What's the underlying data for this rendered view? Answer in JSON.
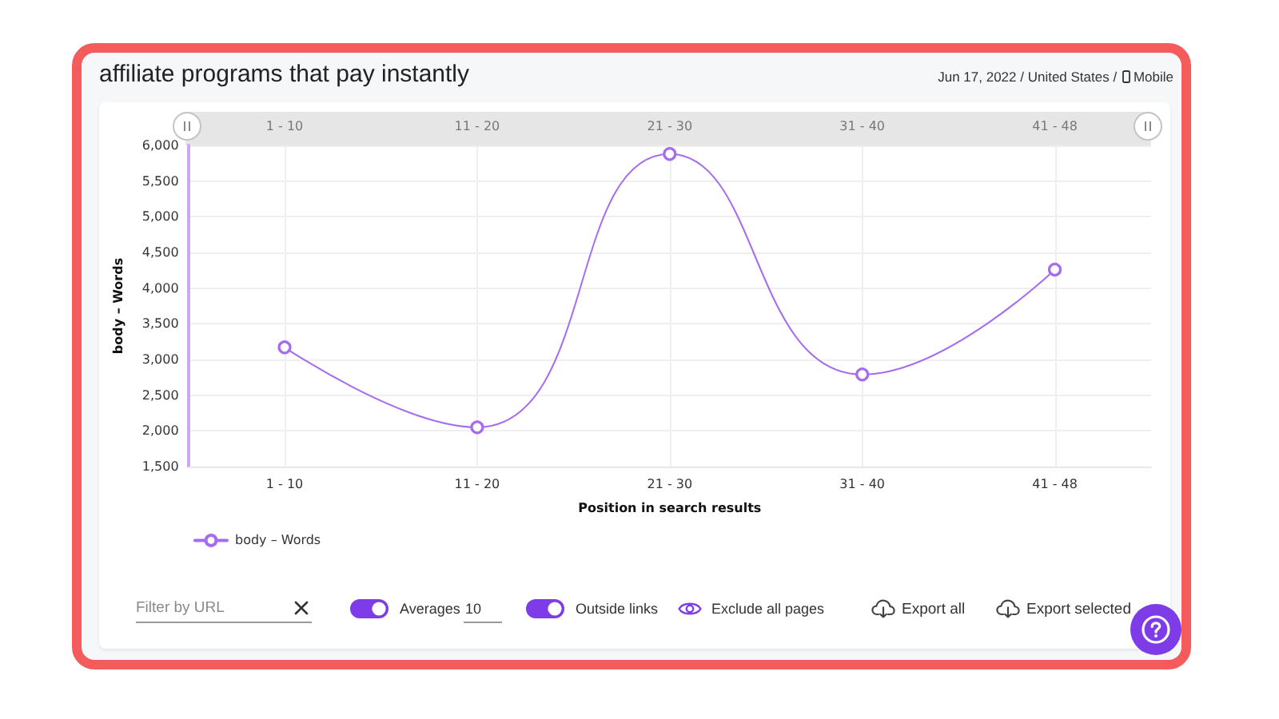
{
  "chart_data": [
    {
      "type": "line",
      "title": "affiliate programs that pay instantly",
      "subtitle": "Jun 17, 2022 / United States / Mobile",
      "xlabel": "Position in search results",
      "ylabel": "body – Words",
      "categories": [
        "1 - 10",
        "11 - 20",
        "21 - 30",
        "31 - 40",
        "41 - 48"
      ],
      "series": [
        {
          "name": "body – Words",
          "color": "#a66cf0",
          "values": [
            3170,
            2050,
            5880,
            2790,
            4260
          ]
        }
      ],
      "ylim": [
        1500,
        6000
      ],
      "yticks": [
        {
          "value": 1500,
          "label": "1,500"
        },
        {
          "value": 2000,
          "label": "2,000"
        },
        {
          "value": 2500,
          "label": "2,500"
        },
        {
          "value": 3000,
          "label": "3,000"
        },
        {
          "value": 3500,
          "label": "3,500"
        },
        {
          "value": 4000,
          "label": "4,000"
        },
        {
          "value": 4500,
          "label": "4,500"
        },
        {
          "value": 5000,
          "label": "5,000"
        },
        {
          "value": 5500,
          "label": "5,500"
        },
        {
          "value": 6000,
          "label": "6,000"
        }
      ],
      "grid": true,
      "legend": "bottom left",
      "marker": "circle",
      "line_style": "solid"
    },
    {
      "type": "other",
      "annotations": [
        "Filter by URL",
        "Averages",
        "10",
        "Outside links",
        "Exclude all pages",
        "Export all",
        "Export selected"
      ]
    }
  ]
}
